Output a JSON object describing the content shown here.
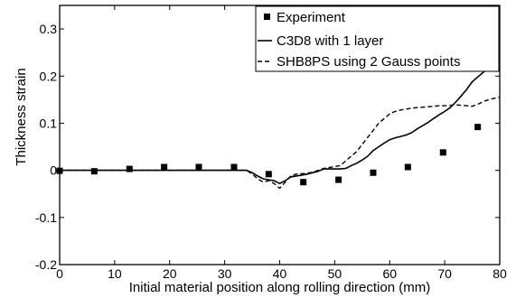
{
  "chart_data": {
    "type": "line",
    "title": "",
    "xlabel": "Initial material position along rolling direction (mm)",
    "ylabel": "Thickness strain",
    "xlim": [
      0,
      80
    ],
    "ylim": [
      -0.2,
      0.35
    ],
    "xticks": [
      0,
      10,
      20,
      30,
      40,
      50,
      60,
      70,
      80
    ],
    "xtick_labels": [
      "0",
      "10",
      "20",
      "30",
      "40",
      "50",
      "60",
      "70",
      "80"
    ],
    "yticks": [
      -0.2,
      -0.1,
      0,
      0.1,
      0.2,
      0.3
    ],
    "ytick_labels": [
      "-0.2",
      "-0.1",
      "0",
      "0.1",
      "0.2",
      "0.3"
    ],
    "grid": false,
    "legend_position": "top-right",
    "series": [
      {
        "name": "Experiment",
        "kind": "scatter",
        "marker": "filled-square",
        "x": [
          0,
          6.3,
          12.7,
          19,
          25.3,
          31.7,
          38,
          44.3,
          50.7,
          57,
          63.3,
          69.7,
          76
        ],
        "y": [
          -0.001,
          -0.002,
          0.003,
          0.007,
          0.007,
          0.007,
          -0.008,
          -0.025,
          -0.02,
          -0.005,
          0.007,
          0.038,
          0.092
        ]
      },
      {
        "name": "C3D8 with 1 layer",
        "kind": "line",
        "dash": "solid",
        "x": [
          0,
          10,
          20,
          30,
          34,
          35,
          36,
          37,
          38,
          39,
          40,
          41,
          42,
          43,
          44,
          45,
          46,
          47,
          48,
          49,
          50,
          51,
          52,
          53,
          54,
          55,
          56,
          57,
          58,
          59,
          60,
          61,
          62,
          63,
          64,
          65,
          66,
          67,
          68,
          69,
          70,
          71,
          72,
          73,
          74,
          75,
          76,
          77,
          78,
          79,
          80
        ],
        "y": [
          0,
          0,
          0,
          0,
          0,
          -0.005,
          -0.012,
          -0.018,
          -0.02,
          -0.022,
          -0.028,
          -0.022,
          -0.014,
          -0.012,
          -0.01,
          -0.008,
          -0.005,
          -0.002,
          0.003,
          0.003,
          0.003,
          0.003,
          0.004,
          0.01,
          0.015,
          0.022,
          0.03,
          0.042,
          0.05,
          0.058,
          0.065,
          0.069,
          0.072,
          0.075,
          0.08,
          0.088,
          0.095,
          0.102,
          0.11,
          0.118,
          0.125,
          0.133,
          0.145,
          0.158,
          0.172,
          0.188,
          0.198,
          0.208,
          0.218,
          0.228,
          0.238
        ]
      },
      {
        "name": "SHB8PS using 2 Gauss points",
        "kind": "line",
        "dash": "dashed",
        "x": [
          0,
          10,
          20,
          30,
          34,
          35,
          36,
          37,
          38,
          39,
          40,
          41,
          42,
          43,
          44,
          45,
          46,
          47,
          48,
          49,
          50,
          51,
          52,
          53,
          54,
          55,
          56,
          57,
          58,
          59,
          60,
          61,
          62,
          63,
          64,
          65,
          66,
          67,
          68,
          69,
          70,
          71,
          72,
          73,
          74,
          75,
          76,
          77,
          78,
          79,
          80
        ],
        "y": [
          0,
          0,
          0,
          0,
          0,
          -0.008,
          -0.018,
          -0.025,
          -0.022,
          -0.028,
          -0.038,
          -0.025,
          -0.012,
          -0.008,
          -0.007,
          -0.006,
          -0.004,
          0,
          0.004,
          0.006,
          0.008,
          0.01,
          0.02,
          0.03,
          0.04,
          0.055,
          0.07,
          0.085,
          0.1,
          0.11,
          0.12,
          0.125,
          0.128,
          0.13,
          0.132,
          0.133,
          0.134,
          0.135,
          0.136,
          0.137,
          0.137,
          0.138,
          0.139,
          0.138,
          0.137,
          0.136,
          0.14,
          0.146,
          0.15,
          0.153,
          0.155
        ]
      }
    ]
  },
  "legend": {
    "entries": [
      "Experiment",
      "C3D8 with 1 layer",
      "SHB8PS using 2 Gauss points"
    ]
  }
}
